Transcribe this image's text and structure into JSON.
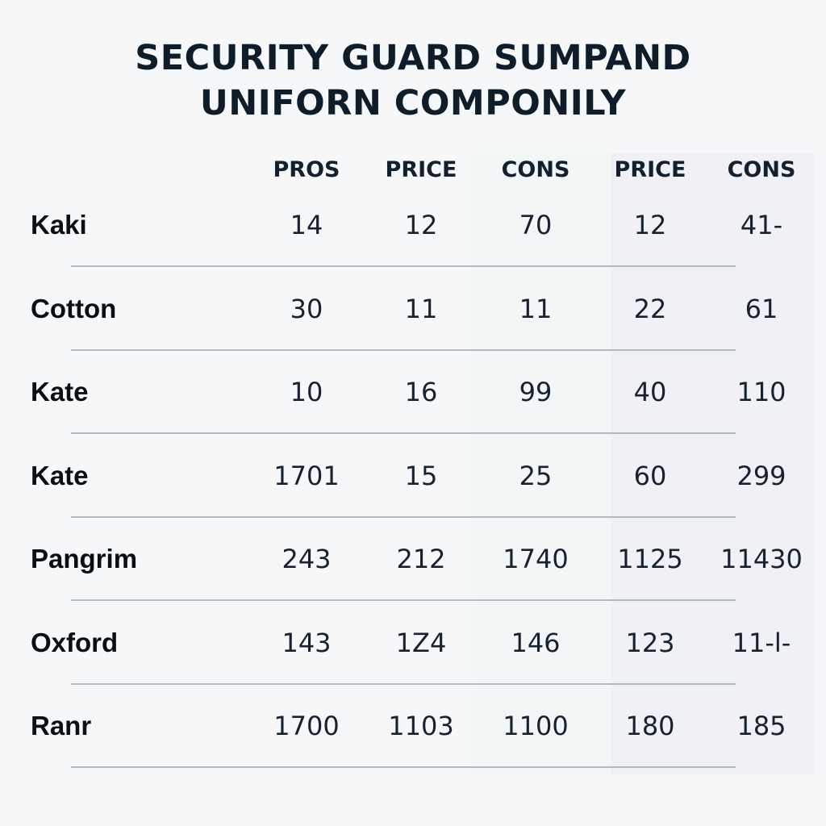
{
  "title_lines": [
    "SECURITY GUARD SUMPAND",
    "UNIFORN COMPONILY"
  ],
  "chart_data": {
    "type": "table",
    "title": "SECURITY GUARD SUMPAND UNIFORN COMPONILY",
    "columns": [
      "PROS",
      "PRICE",
      "CONS",
      "PRICE",
      "CONS"
    ],
    "rows": [
      {
        "label": "Kaki",
        "values": [
          "14",
          "12",
          "70",
          "12",
          "41-"
        ]
      },
      {
        "label": "Cotton",
        "values": [
          "30",
          "11",
          "11",
          "22",
          "61"
        ]
      },
      {
        "label": "Kate",
        "values": [
          "10",
          "16",
          "99",
          "40",
          "110"
        ]
      },
      {
        "label": "Kate",
        "values": [
          "1701",
          "15",
          "25",
          "60",
          "299"
        ]
      },
      {
        "label": "Pangrim",
        "values": [
          "243",
          "212",
          "1740",
          "1125",
          "11430"
        ]
      },
      {
        "label": "Oxford",
        "values": [
          "143",
          "1Z4",
          "146",
          "123",
          "11-l-"
        ]
      },
      {
        "label": "Ranr",
        "values": [
          "1700",
          "1103",
          "1100",
          "180",
          "185"
        ]
      }
    ]
  },
  "colors": {
    "background": "#f6f7f8",
    "text": "#0e1a26",
    "divider": "#b3b9bf",
    "column_shade_1": "#f2f6f7",
    "column_shade_2": "#eff1f5"
  }
}
